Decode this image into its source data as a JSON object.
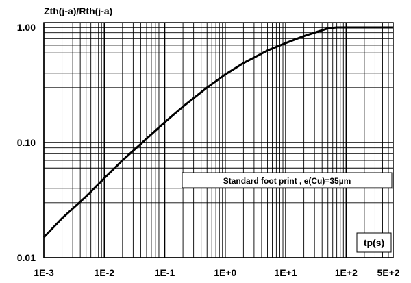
{
  "chart_data": {
    "type": "line",
    "title": "",
    "ylabel": "Zth(j-a)/Rth(j-a)",
    "xlabel": "tp(s)",
    "x_scale": "log",
    "y_scale": "log",
    "xlim": [
      0.001,
      600
    ],
    "ylim": [
      0.01,
      1.1
    ],
    "grid": true,
    "x_ticks": [
      {
        "value": 0.001,
        "label": "1E-3"
      },
      {
        "value": 0.01,
        "label": "1E-2"
      },
      {
        "value": 0.1,
        "label": "1E-1"
      },
      {
        "value": 1,
        "label": "1E+0"
      },
      {
        "value": 10,
        "label": "1E+1"
      },
      {
        "value": 100,
        "label": "1E+2"
      },
      {
        "value": 500,
        "label": "5E+2"
      }
    ],
    "y_ticks": [
      {
        "value": 0.01,
        "label": "0.01"
      },
      {
        "value": 0.1,
        "label": "0.10"
      },
      {
        "value": 1,
        "label": "1.00"
      }
    ],
    "annotation": "Standard foot print , e(Cu)=35µm",
    "series": [
      {
        "x": [
          0.001,
          0.002,
          0.005,
          0.01,
          0.02,
          0.05,
          0.1,
          0.2,
          0.5,
          1,
          2,
          5,
          10,
          20,
          50,
          70,
          100,
          200,
          600
        ],
        "y": [
          0.015,
          0.022,
          0.034,
          0.049,
          0.07,
          0.108,
          0.15,
          0.205,
          0.3,
          0.39,
          0.49,
          0.63,
          0.73,
          0.84,
          0.98,
          1.0,
          1.0,
          1.0,
          1.0
        ]
      }
    ],
    "colors": {
      "line": "#000000",
      "grid": "#000000",
      "background": "#ffffff"
    }
  }
}
